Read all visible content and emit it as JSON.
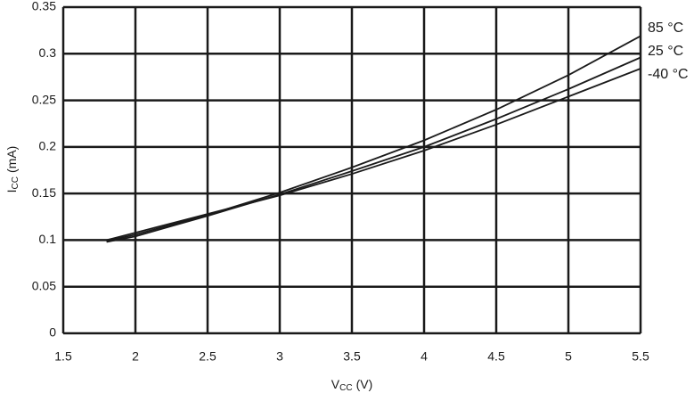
{
  "chart_data": {
    "type": "line",
    "xlabel": [
      "V",
      "CC",
      "(V)"
    ],
    "ylabel": [
      "I",
      "CC",
      "(mA)"
    ],
    "x": [
      1.8,
      2,
      2.5,
      3,
      3.5,
      4,
      4.5,
      5,
      5.5
    ],
    "series": [
      {
        "name": "85 °C",
        "color": "#1a1a1a",
        "values": [
          0.099,
          0.106,
          0.127,
          0.151,
          0.178,
          0.207,
          0.24,
          0.277,
          0.319
        ]
      },
      {
        "name": "25 °C",
        "color": "#1a1a1a",
        "values": [
          0.098,
          0.104,
          0.126,
          0.149,
          0.174,
          0.2,
          0.23,
          0.262,
          0.296
        ]
      },
      {
        "name": "-40 °C",
        "color": "#1a1a1a",
        "values": [
          0.1,
          0.108,
          0.128,
          0.148,
          0.171,
          0.196,
          0.224,
          0.254,
          0.284
        ]
      }
    ],
    "xlim": [
      1.5,
      5.5
    ],
    "xticks": [
      1.5,
      2,
      2.5,
      3,
      3.5,
      4,
      4.5,
      5,
      5.5
    ],
    "ylim": [
      0,
      0.35
    ],
    "yticks": [
      0,
      0.05,
      0.1,
      0.15,
      0.2,
      0.25,
      0.3,
      0.35
    ],
    "grid": true
  }
}
